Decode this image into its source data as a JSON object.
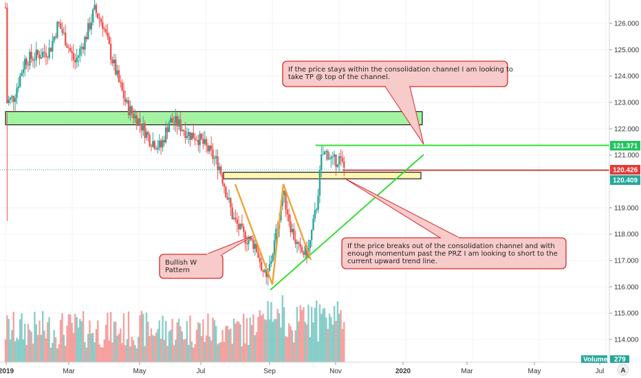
{
  "chart_data": {
    "type": "candlestick",
    "y_ticks": [
      "126.000",
      "125.000",
      "124.000",
      "123.000",
      "122.000",
      "121.000",
      "119.000",
      "118.000",
      "117.000",
      "116.000",
      "115.000",
      "114.000"
    ],
    "x_ticks": [
      "2019",
      "Mar",
      "May",
      "Jul",
      "Sep",
      "Nov",
      "2020",
      "Mar",
      "May",
      "Jul"
    ],
    "ylim": [
      113.2,
      127.0
    ],
    "price_tags": [
      {
        "label": "121.371",
        "value": 121.371,
        "color": "#22c55e"
      },
      {
        "label": "120.426",
        "value": 120.426,
        "color": "#e53935"
      },
      {
        "label": "120.409",
        "value": 120.409,
        "color": "#26a69a"
      }
    ],
    "volume_label": "Volume",
    "volume_value": "279",
    "logo": "A",
    "zones": [
      {
        "name": "resistance-zone",
        "y_top": 122.65,
        "y_bottom": 122.15,
        "x_start": 0,
        "x_end": 21.7,
        "color": "#9ef29e"
      },
      {
        "name": "consolidation-zone",
        "y_top": 120.35,
        "y_bottom": 120.1,
        "x_start": 11.6,
        "x_end": 21.6,
        "color": "#fff4b0"
      }
    ],
    "lines": [
      {
        "name": "top-of-channel-line",
        "color": "#33dd33",
        "points": [
          [
            16.2,
            121.371
          ],
          [
            33,
            121.371
          ]
        ]
      },
      {
        "name": "current-price-line",
        "color": "#e53935",
        "points": [
          [
            17.6,
            120.426
          ],
          [
            33,
            120.426
          ]
        ]
      },
      {
        "name": "upward-trend-line",
        "color": "#33dd33",
        "points": [
          [
            13.9,
            115.85
          ],
          [
            21.8,
            121.05
          ]
        ]
      },
      {
        "name": "w-pattern-line-1",
        "color": "#f2a33a",
        "points": [
          [
            12.1,
            119.9
          ],
          [
            13.9,
            116.1
          ]
        ]
      },
      {
        "name": "w-pattern-line-2",
        "color": "#f2a33a",
        "points": [
          [
            13.9,
            116.1
          ],
          [
            14.5,
            119.8
          ]
        ]
      },
      {
        "name": "w-pattern-line-3",
        "color": "#f2a33a",
        "points": [
          [
            14.5,
            119.8
          ],
          [
            15.9,
            117.0
          ]
        ]
      }
    ],
    "annotations": [
      {
        "name": "tp-callout",
        "text": [
          "If the price stays within the consolidation channel I am looking to",
          "take TP @ top of the channel."
        ]
      },
      {
        "name": "breakout-callout",
        "text": [
          "If the price breaks out of the consolidation channel and with",
          "enough momentum past the PRZ I am looking to short to the",
          "current upward trend line."
        ]
      },
      {
        "name": "w-pattern-callout",
        "text": [
          "Bullish W",
          "Pattern"
        ]
      }
    ],
    "up_color": "#26a69a",
    "down_color": "#ef5350"
  }
}
